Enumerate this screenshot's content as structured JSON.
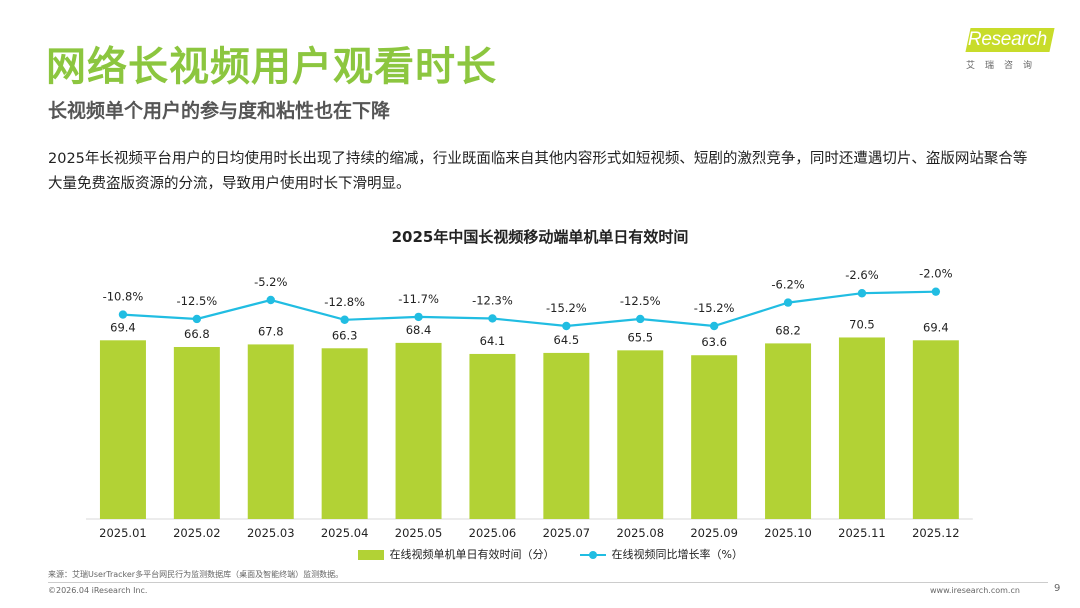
{
  "header": {
    "title": "网络长视频用户观看时长",
    "subtitle": "长视频单个用户的参与度和粘性也在下降",
    "body": "2025年长视频平台用户的日均使用时长出现了持续的缩减，行业既面临来自其他内容形式如短视频、短剧的激烈竞争，同时还遭遇切片、盗版网站聚合等大量免费盗版资源的分流，导致用户使用时长下滑明显。"
  },
  "logo": {
    "brand": "iResearch",
    "cn": "艾瑞咨询"
  },
  "colors": {
    "accent": "#8cc63f",
    "bar": "#b2d235",
    "line": "#21bde2"
  },
  "chart_data": {
    "type": "bar+line",
    "title": "2025年中国长视频移动端单机单日有效时间",
    "categories": [
      "2025.01",
      "2025.02",
      "2025.03",
      "2025.04",
      "2025.05",
      "2025.06",
      "2025.07",
      "2025.08",
      "2025.09",
      "2025.10",
      "2025.11",
      "2025.12"
    ],
    "series": [
      {
        "name": "在线视频单机单日有效时间（分）",
        "type": "bar",
        "values": [
          69.4,
          66.8,
          67.8,
          66.3,
          68.4,
          64.1,
          64.5,
          65.5,
          63.6,
          68.2,
          70.5,
          69.4
        ],
        "labels": [
          "69.4",
          "66.8",
          "67.8",
          "66.3",
          "68.4",
          "64.1",
          "64.5",
          "65.5",
          "63.6",
          "68.2",
          "70.5",
          "69.4"
        ]
      },
      {
        "name": "在线视频同比增长率（%）",
        "type": "line",
        "values": [
          -10.8,
          -12.5,
          -5.2,
          -12.8,
          -11.7,
          -12.3,
          -15.2,
          -12.5,
          -15.2,
          -6.2,
          -2.6,
          -2.0
        ],
        "labels": [
          "-10.8%",
          "-12.5%",
          "-5.2%",
          "-12.8%",
          "-11.7%",
          "-12.3%",
          "-15.2%",
          "-12.5%",
          "-15.2%",
          "-6.2%",
          "-2.6%",
          "-2.0%"
        ]
      }
    ],
    "bar_ylim": [
      0,
      75
    ],
    "line_ylim": [
      -40,
      0
    ]
  },
  "footer": {
    "source": "来源：艾瑞UserTracker多平台网民行为监测数据库（桌面及智能终端）监测数据。",
    "copyright": "©2026.04 iResearch Inc.",
    "website": "www.iresearch.com.cn",
    "page": "9"
  }
}
